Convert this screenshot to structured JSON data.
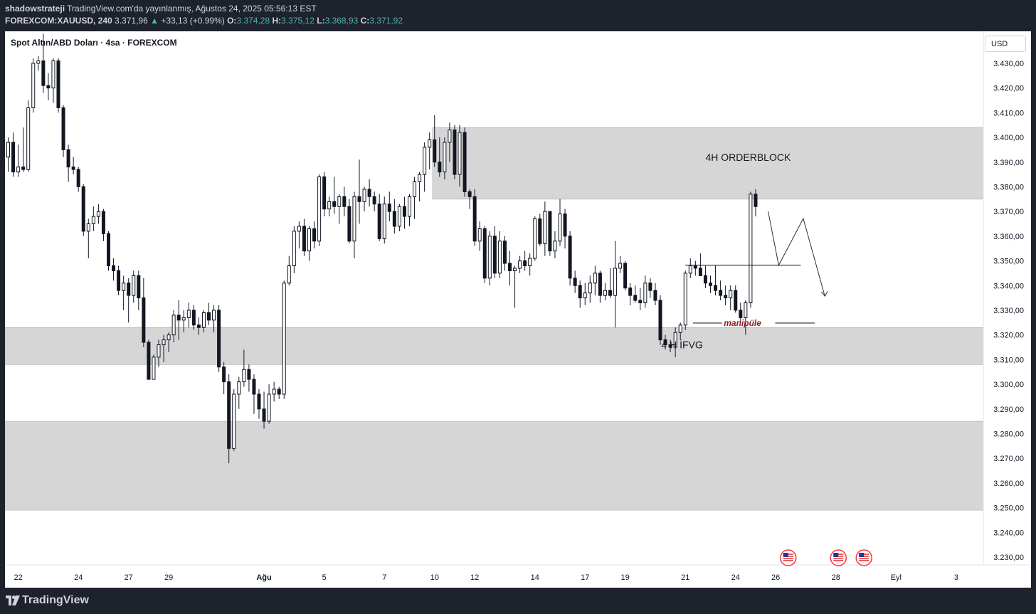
{
  "header": {
    "author": "shadowstrateji",
    "publish_info": "TradingView.com'da yayınlanmış, Ağustos 24, 2025 05:56:13 EST",
    "symbol_interval": "FOREXCOM:XAUUSD, 240",
    "last_price": "3.371,96",
    "change": "+33,13 (+0.99%)",
    "open_label": "O:",
    "open": "3.374,28",
    "high_label": "H:",
    "high": "3.375,12",
    "low_label": "L:",
    "low": "3.368,93",
    "close_label": "C:",
    "close": "3.371,92",
    "up_glyph": "▲"
  },
  "chart_title": "Spot Altın/ABD Doları · 4sa · FOREXCOM",
  "currency": "USD",
  "footer": {
    "brand": "TradingView"
  },
  "colors": {
    "candle": "#131722",
    "zone_fill": "#d6d6d6",
    "annotation_red": "#8a1c22",
    "up_teal": "#4db6ac",
    "bg_dark": "#1e222d"
  },
  "chart_data": {
    "type": "candlestick",
    "title": "Spot Altın/ABD Doları · 4sa · FOREXCOM",
    "y_axis": {
      "ticks": [
        3430,
        3420,
        3410,
        3400,
        3390,
        3380,
        3370,
        3360,
        3350,
        3340,
        3330,
        3320,
        3310,
        3300,
        3290,
        3280,
        3270,
        3260,
        3250,
        3240,
        3230
      ],
      "tick_labels": [
        "3.430,00",
        "3.420,00",
        "3.410,00",
        "3.400,00",
        "3.390,00",
        "3.380,00",
        "3.370,00",
        "3.360,00",
        "3.350,00",
        "3.340,00",
        "3.330,00",
        "3.320,00",
        "3.310,00",
        "3.300,00",
        "3.290,00",
        "3.280,00",
        "3.270,00",
        "3.260,00",
        "3.250,00",
        "3.240,00",
        "3.230,00"
      ],
      "range": [
        3225,
        3445
      ]
    },
    "x_axis": {
      "tick_labels": [
        "22",
        "24",
        "27",
        "29",
        "Ağu",
        "5",
        "7",
        "10",
        "12",
        "14",
        "17",
        "19",
        "21",
        "24",
        "26",
        "28",
        "Eyl",
        "3"
      ],
      "bar_index": [
        2,
        14,
        24,
        32,
        51,
        63,
        75,
        85,
        93,
        105,
        115,
        123,
        135,
        145,
        153,
        165,
        177,
        189
      ]
    },
    "candles": [
      [
        3392,
        3400,
        3386,
        3398
      ],
      [
        3398,
        3402,
        3384,
        3386
      ],
      [
        3386,
        3397,
        3384,
        3388
      ],
      [
        3388,
        3404,
        3386,
        3387
      ],
      [
        3387,
        3415,
        3386,
        3412
      ],
      [
        3412,
        3432,
        3410,
        3430
      ],
      [
        3430,
        3433,
        3427,
        3431
      ],
      [
        3431,
        3442,
        3418,
        3421
      ],
      [
        3421,
        3426,
        3415,
        3420
      ],
      [
        3420,
        3432,
        3414,
        3431
      ],
      [
        3431,
        3432,
        3410,
        3412
      ],
      [
        3412,
        3413,
        3392,
        3395
      ],
      [
        3395,
        3397,
        3382,
        3388
      ],
      [
        3388,
        3392,
        3385,
        3387
      ],
      [
        3387,
        3388,
        3378,
        3380
      ],
      [
        3380,
        3381,
        3360,
        3362
      ],
      [
        3362,
        3367,
        3351,
        3365
      ],
      [
        3365,
        3372,
        3362,
        3368
      ],
      [
        3368,
        3373,
        3365,
        3370
      ],
      [
        3370,
        3371,
        3358,
        3361
      ],
      [
        3361,
        3362,
        3346,
        3348
      ],
      [
        3348,
        3351,
        3342,
        3346
      ],
      [
        3346,
        3348,
        3336,
        3338
      ],
      [
        3338,
        3344,
        3330,
        3341
      ],
      [
        3341,
        3343,
        3325,
        3336
      ],
      [
        3336,
        3346,
        3333,
        3344
      ],
      [
        3344,
        3346,
        3330,
        3335
      ],
      [
        3335,
        3343,
        3315,
        3317
      ],
      [
        3317,
        3318,
        3302,
        3302
      ],
      [
        3302,
        3312,
        3302,
        3311
      ],
      [
        3311,
        3318,
        3307,
        3316
      ],
      [
        3316,
        3320,
        3309,
        3318
      ],
      [
        3318,
        3321,
        3313,
        3320
      ],
      [
        3320,
        3330,
        3317,
        3328
      ],
      [
        3328,
        3334,
        3318,
        3326
      ],
      [
        3326,
        3330,
        3321,
        3327
      ],
      [
        3327,
        3333,
        3323,
        3330
      ],
      [
        3330,
        3332,
        3322,
        3324
      ],
      [
        3324,
        3327,
        3320,
        3323
      ],
      [
        3323,
        3330,
        3321,
        3329
      ],
      [
        3329,
        3333,
        3324,
        3326
      ],
      [
        3326,
        3332,
        3321,
        3330
      ],
      [
        3330,
        3332,
        3305,
        3307
      ],
      [
        3307,
        3309,
        3296,
        3301
      ],
      [
        3301,
        3304,
        3268,
        3274
      ],
      [
        3274,
        3298,
        3273,
        3296
      ],
      [
        3296,
        3303,
        3290,
        3301
      ],
      [
        3301,
        3314,
        3299,
        3306
      ],
      [
        3306,
        3308,
        3297,
        3302
      ],
      [
        3302,
        3304,
        3288,
        3296
      ],
      [
        3296,
        3298,
        3286,
        3290
      ],
      [
        3290,
        3297,
        3282,
        3285
      ],
      [
        3285,
        3300,
        3284,
        3296
      ],
      [
        3296,
        3301,
        3293,
        3298
      ],
      [
        3298,
        3299,
        3294,
        3296
      ],
      [
        3296,
        3342,
        3294,
        3341
      ],
      [
        3341,
        3352,
        3340,
        3348
      ],
      [
        3348,
        3364,
        3345,
        3362
      ],
      [
        3362,
        3366,
        3355,
        3364
      ],
      [
        3364,
        3367,
        3352,
        3354
      ],
      [
        3354,
        3364,
        3350,
        3363
      ],
      [
        3363,
        3366,
        3355,
        3358
      ],
      [
        3358,
        3385,
        3356,
        3384
      ],
      [
        3384,
        3386,
        3368,
        3371
      ],
      [
        3371,
        3376,
        3368,
        3374
      ],
      [
        3374,
        3384,
        3369,
        3372
      ],
      [
        3372,
        3377,
        3365,
        3376
      ],
      [
        3376,
        3380,
        3368,
        3372
      ],
      [
        3372,
        3375,
        3357,
        3358
      ],
      [
        3358,
        3378,
        3351,
        3376
      ],
      [
        3376,
        3391,
        3365,
        3374
      ],
      [
        3374,
        3380,
        3370,
        3379
      ],
      [
        3379,
        3383,
        3372,
        3376
      ],
      [
        3376,
        3378,
        3370,
        3373
      ],
      [
        3373,
        3377,
        3358,
        3359
      ],
      [
        3359,
        3376,
        3357,
        3373
      ],
      [
        3373,
        3378,
        3366,
        3370
      ],
      [
        3370,
        3375,
        3361,
        3364
      ],
      [
        3364,
        3373,
        3362,
        3372
      ],
      [
        3372,
        3376,
        3363,
        3368
      ],
      [
        3368,
        3377,
        3364,
        3376
      ],
      [
        3376,
        3384,
        3367,
        3382
      ],
      [
        3382,
        3386,
        3374,
        3385
      ],
      [
        3385,
        3398,
        3378,
        3396
      ],
      [
        3396,
        3402,
        3387,
        3399
      ],
      [
        3399,
        3409,
        3388,
        3390
      ],
      [
        3390,
        3400,
        3384,
        3386
      ],
      [
        3386,
        3400,
        3383,
        3398
      ],
      [
        3398,
        3406,
        3390,
        3403
      ],
      [
        3403,
        3405,
        3383,
        3385
      ],
      [
        3385,
        3405,
        3380,
        3402
      ],
      [
        3402,
        3404,
        3376,
        3378
      ],
      [
        3378,
        3379,
        3371,
        3376
      ],
      [
        3376,
        3379,
        3356,
        3358
      ],
      [
        3358,
        3366,
        3354,
        3363
      ],
      [
        3363,
        3364,
        3341,
        3343
      ],
      [
        3343,
        3362,
        3340,
        3360
      ],
      [
        3360,
        3364,
        3343,
        3345
      ],
      [
        3345,
        3362,
        3343,
        3358
      ],
      [
        3358,
        3360,
        3346,
        3349
      ],
      [
        3349,
        3354,
        3340,
        3346
      ],
      [
        3346,
        3348,
        3331,
        3347
      ],
      [
        3347,
        3352,
        3345,
        3350
      ],
      [
        3350,
        3354,
        3346,
        3348
      ],
      [
        3348,
        3353,
        3344,
        3351
      ],
      [
        3351,
        3368,
        3350,
        3367
      ],
      [
        3367,
        3369,
        3356,
        3357
      ],
      [
        3357,
        3374,
        3352,
        3370
      ],
      [
        3370,
        3370,
        3352,
        3354
      ],
      [
        3354,
        3362,
        3351,
        3358
      ],
      [
        3358,
        3375,
        3356,
        3369
      ],
      [
        3369,
        3371,
        3355,
        3360
      ],
      [
        3360,
        3362,
        3340,
        3343
      ],
      [
        3343,
        3346,
        3337,
        3340
      ],
      [
        3340,
        3342,
        3331,
        3335
      ],
      [
        3335,
        3341,
        3332,
        3337
      ],
      [
        3337,
        3344,
        3333,
        3341
      ],
      [
        3341,
        3348,
        3336,
        3345
      ],
      [
        3345,
        3346,
        3333,
        3336
      ],
      [
        3336,
        3341,
        3334,
        3338
      ],
      [
        3338,
        3347,
        3335,
        3336
      ],
      [
        3336,
        3358,
        3323,
        3347
      ],
      [
        3347,
        3352,
        3345,
        3349
      ],
      [
        3349,
        3350,
        3338,
        3339
      ],
      [
        3339,
        3341,
        3332,
        3336
      ],
      [
        3336,
        3340,
        3333,
        3334
      ],
      [
        3334,
        3339,
        3330,
        3333
      ],
      [
        3333,
        3344,
        3331,
        3341
      ],
      [
        3341,
        3343,
        3335,
        3338
      ],
      [
        3338,
        3341,
        3332,
        3334
      ],
      [
        3334,
        3336,
        3316,
        3318
      ],
      [
        3318,
        3320,
        3314,
        3316
      ],
      [
        3316,
        3318,
        3313,
        3315
      ],
      [
        3315,
        3323,
        3311,
        3321
      ],
      [
        3321,
        3325,
        3318,
        3324
      ],
      [
        3324,
        3346,
        3322,
        3345
      ],
      [
        3345,
        3351,
        3343,
        3348
      ],
      [
        3348,
        3350,
        3344,
        3347
      ],
      [
        3347,
        3353,
        3345,
        3344
      ],
      [
        3344,
        3348,
        3339,
        3341
      ],
      [
        3341,
        3344,
        3337,
        3340
      ],
      [
        3340,
        3348,
        3336,
        3338
      ],
      [
        3338,
        3342,
        3334,
        3336
      ],
      [
        3336,
        3340,
        3332,
        3335
      ],
      [
        3335,
        3340,
        3330,
        3338
      ],
      [
        3338,
        3340,
        3329,
        3330
      ],
      [
        3330,
        3333,
        3325,
        3327
      ],
      [
        3327,
        3334,
        3320,
        3333
      ],
      [
        3333,
        3378,
        3331,
        3377
      ],
      [
        3377,
        3379,
        3368,
        3372
      ]
    ],
    "zones": [
      {
        "from": 3375,
        "to": 3404,
        "label": "4H ORDERBLOCK"
      },
      {
        "from": 3308,
        "to": 3323,
        "label": "4 H İFVG"
      },
      {
        "from": 3249,
        "to": 3285,
        "label": ""
      }
    ],
    "annotations": [
      {
        "type": "hline",
        "price": 3348.2,
        "from_bar": 135,
        "to_bar": 158
      },
      {
        "type": "hline",
        "price": 3324.8,
        "label": "manipüle"
      },
      {
        "type": "projection_path",
        "points": [
          [
            151.5,
            3370
          ],
          [
            153.6,
            3348.2
          ],
          [
            158.5,
            3367.1
          ],
          [
            162.8,
            3335.7
          ]
        ]
      }
    ],
    "event_markers_at_bar": [
      155.5,
      165.5,
      170.6
    ]
  }
}
